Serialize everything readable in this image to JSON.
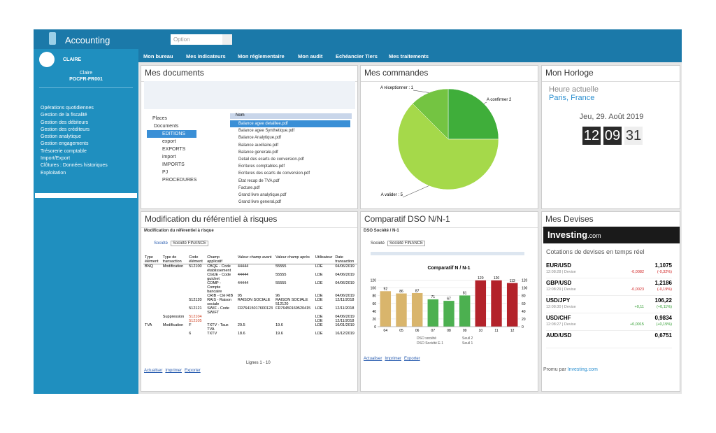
{
  "sidebar": {
    "logo": "Accounting",
    "user": "CLAIRE",
    "name": "Claire",
    "code": "POCFR-FR001",
    "menu": [
      "Opérations quotidiennes",
      "Gestion de la fiscalité",
      "Gestion des débiteurs",
      "Gestion des créditeurs",
      "Gestion analytique",
      "Gestion engagements",
      "Trésorerie comptable",
      "Import/Export",
      "Clôtures : Données historiques",
      "Exploitation"
    ]
  },
  "topbar": {
    "select": "Option"
  },
  "tabs": [
    "Mon bureau",
    "Mes indicateurs",
    "Mon réglementaire",
    "Mon audit",
    "Echéancier Tiers",
    "Mes traitements"
  ],
  "documents": {
    "title": "Mes documents",
    "tree": [
      "Places",
      "Documents",
      "EDITIONS",
      "export",
      "EXPORTS",
      "import",
      "IMPORTS",
      "PJ",
      "PROCEDURES"
    ],
    "header": "Nom",
    "files": [
      "Balance agee detaillee.pdf",
      "Balance agee Synthetique.pdf",
      "Balance Analytique.pdf",
      "Balance auxiliaire.pdf",
      "Balance generale.pdf",
      "Detail des ecarts de conversion.pdf",
      "Ecritures comptables.pdf",
      "Ecritures des ecarts de conversion.pdf",
      "Etat recap de TVA.pdf",
      "Facture.pdf",
      "Grand livre analytique.pdf",
      "Grand livre general.pdf"
    ]
  },
  "commandes": {
    "title": "Mes commandes",
    "chart_data": {
      "type": "pie",
      "values": [
        2,
        5,
        1
      ],
      "value_labels": [
        "A confirmer 2",
        "A valider : 5",
        "A réceptionner : 1"
      ],
      "colors": [
        "#3fae3a",
        "#a5d94a",
        "#74c442"
      ]
    }
  },
  "horloge": {
    "title": "Mon Horloge",
    "label": "Heure actuelle",
    "city": "Paris, France",
    "date": "Jeu, 29. Août 2019",
    "hh": "12",
    "mm": "09",
    "ss": "31"
  },
  "referentiel": {
    "title": "Modification du référentiel à risques",
    "subtitle": "Modification du référentiel à risque",
    "filter_label": "Société",
    "filter": "Société FINANCE",
    "columns": [
      "Type élément",
      "Type de transaction",
      "Code élément",
      "Champ applicatif",
      "Valeur champ avant",
      "Valeur champ après",
      "Utilisateur",
      "Date transaction"
    ],
    "rows": [
      [
        "BNQ",
        "Modification",
        "512100",
        "CBQE - Code établissement",
        "44444",
        "55555",
        "LDE",
        "04/06/2019"
      ],
      [
        null,
        null,
        null,
        "CGUE - Code guichet",
        "44444",
        "55555",
        "LDE",
        "04/06/2019"
      ],
      [
        null,
        null,
        null,
        "COMP - Compte bancaire",
        "44444",
        "55555",
        "LDE",
        "04/06/2019"
      ],
      [
        null,
        null,
        null,
        "CRIB - Clé RIB",
        "95",
        "96",
        "LDE",
        "04/06/2019"
      ],
      [
        null,
        null,
        "512120",
        "RAIS - Raison sociale",
        "RAISON SOCIALE",
        "RAISON SOCIALE 512120",
        "LDE",
        "12/11/2018"
      ],
      [
        null,
        null,
        "512121",
        "SWIF - Code SWIFT",
        "FR76415017600123",
        "FR76450169520415",
        "LDE",
        "12/11/2018"
      ],
      [
        null,
        "Suppression",
        "512104",
        null,
        null,
        null,
        "LDE",
        "04/06/2019"
      ],
      [
        null,
        null,
        "512105",
        null,
        null,
        null,
        "LDE",
        "12/11/2018"
      ],
      [
        "TVA",
        "Modification",
        "F",
        "TXTV - Taux TVA",
        "29.5",
        "19.6",
        "LDE",
        "16/01/2019"
      ],
      [
        null,
        null,
        "6",
        "TXTV",
        "18.6",
        "19.6",
        "LDE",
        "16/12/2019"
      ]
    ],
    "pager": "Lignes 1 - 10",
    "links": [
      "Actualiser",
      "Imprimer",
      "Exporter"
    ]
  },
  "dso": {
    "title": "Comparatif DSO N/N-1",
    "subtitle": "DSO Société / N-1",
    "filter_label": "Société",
    "filter": "Société FINANCE",
    "links": [
      "Actualiser",
      "Imprimer",
      "Exporter"
    ],
    "chart_data": {
      "type": "bar",
      "title": "Comparatif N / N-1",
      "categories": [
        "04",
        "05",
        "06",
        "07",
        "08",
        "09",
        "10",
        "11",
        "12"
      ],
      "values": [
        92,
        86,
        87,
        71,
        67,
        81,
        120,
        120,
        113
      ],
      "colors": [
        "#d9b56c",
        "#d9b56c",
        "#d9b56c",
        "#4cb050",
        "#4cb050",
        "#4cb050",
        "#b3222a",
        "#b3222a",
        "#b3222a"
      ],
      "ylim": [
        0,
        130
      ],
      "yticks": [
        0,
        20,
        40,
        60,
        80,
        100,
        120
      ],
      "legend": [
        "DSO société",
        "Seuil 2",
        "DSO Société E-1",
        "Seuil 1"
      ]
    }
  },
  "devises": {
    "title": "Mes Devises",
    "brand": "Investing",
    "brand_suffix": ".com",
    "subtitle": "Cotations de devises en temps réel",
    "rows": [
      [
        "EUR/USD",
        "1,1075",
        "12:08:28 | Devise",
        "-0,0082",
        "(-0,32%)"
      ],
      [
        "GBP/USD",
        "1,2186",
        "12:08:29 | Devise",
        "-0,0023",
        "(-0,19%)"
      ],
      [
        "USD/JPY",
        "106,22",
        "12:08:30 | Devise",
        "+0,11",
        "(+0,11%)"
      ],
      [
        "USD/CHF",
        "0,9834",
        "12:08:27 | Devise",
        "+0,0015",
        "(+0,15%)"
      ],
      [
        "AUD/USD",
        "0,6751"
      ]
    ],
    "footer": "Promu par",
    "footer_link": "Investing.com"
  }
}
